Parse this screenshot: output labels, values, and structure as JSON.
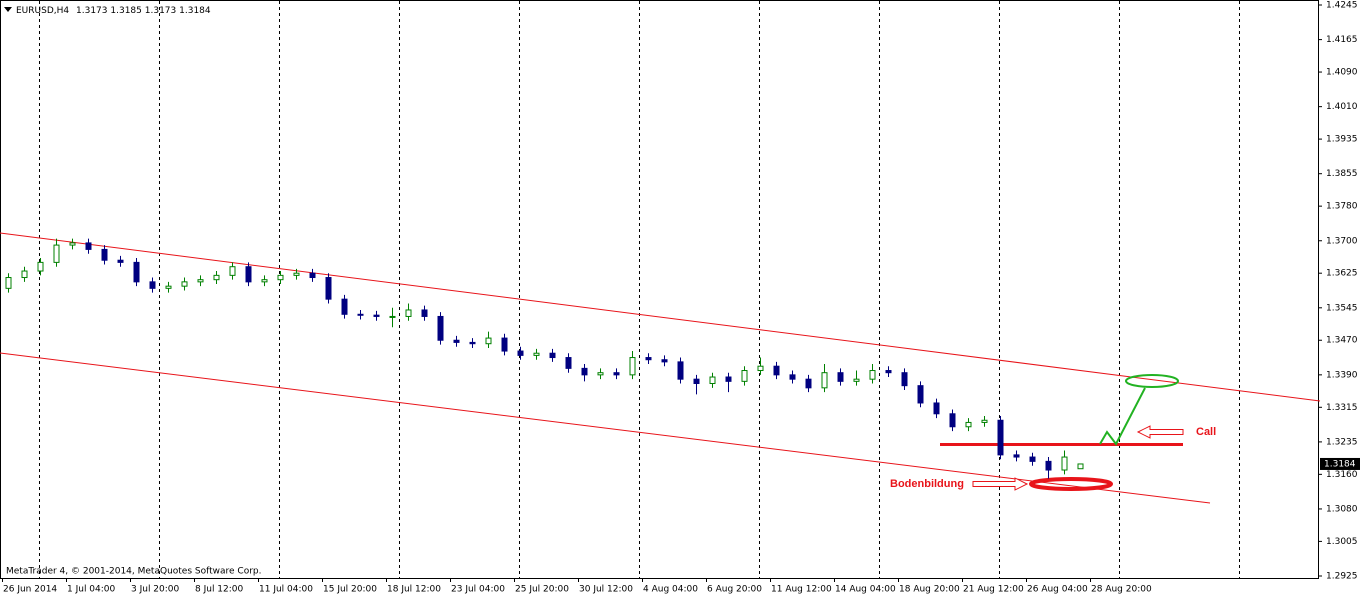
{
  "chart_data": {
    "type": "candlestick",
    "symbol": "EURUSD,H4",
    "footer": "MetaTrader 4, © 2001-2014, MetaQuotes Software Corp.",
    "annotations": [
      "Call",
      "Bodenbildung"
    ],
    "up_color": "#008000",
    "down_color": "#000080",
    "ylim": [
      1.2925,
      1.4245
    ],
    "yticks": [
      {
        "value": 1.4245,
        "label": "1.4245"
      },
      {
        "value": 1.4165,
        "label": "1.4165"
      },
      {
        "value": 1.409,
        "label": "1.4090"
      },
      {
        "value": 1.401,
        "label": "1.4010"
      },
      {
        "value": 1.3935,
        "label": "1.3935"
      },
      {
        "value": 1.3855,
        "label": "1.3855"
      },
      {
        "value": 1.378,
        "label": "1.3780"
      },
      {
        "value": 1.37,
        "label": "1.3700"
      },
      {
        "value": 1.3625,
        "label": "1.3625"
      },
      {
        "value": 1.3545,
        "label": "1.3545"
      },
      {
        "value": 1.347,
        "label": "1.3470"
      },
      {
        "value": 1.339,
        "label": "1.3390"
      },
      {
        "value": 1.3315,
        "label": "1.3315"
      },
      {
        "value": 1.3235,
        "label": "1.3235"
      },
      {
        "value": 1.316,
        "label": "1.3160"
      },
      {
        "value": 1.308,
        "label": "1.3080"
      },
      {
        "value": 1.3005,
        "label": "1.3005"
      },
      {
        "value": 1.2925,
        "label": "1.2925"
      }
    ],
    "x_labels": [
      "26 Jun 2014",
      "1 Jul 04:00",
      "3 Jul 20:00",
      "8 Jul 12:00",
      "11 Jul 04:00",
      "15 Jul 20:00",
      "18 Jul 12:00",
      "23 Jul 04:00",
      "25 Jul 20:00",
      "30 Jul 12:00",
      "4 Aug 04:00",
      "6 Aug 20:00",
      "11 Aug 12:00",
      "14 Aug 04:00",
      "18 Aug 20:00",
      "21 Aug 12:00",
      "26 Aug 04:00",
      "28 Aug 20:00"
    ],
    "ohlc": [
      [
        1.359,
        1.3625,
        1.358,
        1.3615
      ],
      [
        1.3615,
        1.364,
        1.3605,
        1.363
      ],
      [
        1.363,
        1.366,
        1.362,
        1.365
      ],
      [
        1.365,
        1.3705,
        1.364,
        1.369
      ],
      [
        1.369,
        1.3705,
        1.368,
        1.3695
      ],
      [
        1.3695,
        1.3705,
        1.367,
        1.368
      ],
      [
        1.368,
        1.369,
        1.3645,
        1.3655
      ],
      [
        1.3655,
        1.3665,
        1.364,
        1.365
      ],
      [
        1.365,
        1.366,
        1.3595,
        1.3605
      ],
      [
        1.3605,
        1.3615,
        1.358,
        1.359
      ],
      [
        1.359,
        1.3605,
        1.358,
        1.3595
      ],
      [
        1.3595,
        1.3615,
        1.3585,
        1.3605
      ],
      [
        1.3605,
        1.362,
        1.3595,
        1.361
      ],
      [
        1.361,
        1.363,
        1.36,
        1.362
      ],
      [
        1.362,
        1.365,
        1.361,
        1.364
      ],
      [
        1.364,
        1.365,
        1.3595,
        1.3605
      ],
      [
        1.3605,
        1.362,
        1.3595,
        1.361
      ],
      [
        1.361,
        1.363,
        1.36,
        1.362
      ],
      [
        1.362,
        1.3635,
        1.361,
        1.3625
      ],
      [
        1.3625,
        1.3635,
        1.3605,
        1.3615
      ],
      [
        1.3615,
        1.3625,
        1.3555,
        1.3565
      ],
      [
        1.3565,
        1.3575,
        1.352,
        1.353
      ],
      [
        1.353,
        1.354,
        1.3518,
        1.3528
      ],
      [
        1.3528,
        1.3538,
        1.3515,
        1.3525
      ],
      [
        1.3525,
        1.3545,
        1.35,
        1.3525
      ],
      [
        1.3525,
        1.3555,
        1.3515,
        1.354
      ],
      [
        1.354,
        1.355,
        1.3515,
        1.3525
      ],
      [
        1.3525,
        1.3535,
        1.346,
        1.347
      ],
      [
        1.347,
        1.348,
        1.3455,
        1.3465
      ],
      [
        1.3465,
        1.3475,
        1.3452,
        1.3462
      ],
      [
        1.3462,
        1.349,
        1.3452,
        1.3475
      ],
      [
        1.3475,
        1.3485,
        1.3435,
        1.3445
      ],
      [
        1.3445,
        1.3455,
        1.3425,
        1.3435
      ],
      [
        1.3435,
        1.345,
        1.3425,
        1.344
      ],
      [
        1.344,
        1.345,
        1.342,
        1.343
      ],
      [
        1.343,
        1.344,
        1.3395,
        1.3405
      ],
      [
        1.3405,
        1.3415,
        1.3375,
        1.339
      ],
      [
        1.339,
        1.3405,
        1.338,
        1.3395
      ],
      [
        1.3395,
        1.3405,
        1.338,
        1.339
      ],
      [
        1.339,
        1.3445,
        1.338,
        1.343
      ],
      [
        1.343,
        1.344,
        1.3415,
        1.3425
      ],
      [
        1.3425,
        1.3435,
        1.341,
        1.342
      ],
      [
        1.342,
        1.343,
        1.337,
        1.338
      ],
      [
        1.338,
        1.339,
        1.3345,
        1.337
      ],
      [
        1.337,
        1.3395,
        1.336,
        1.3385
      ],
      [
        1.3385,
        1.3395,
        1.335,
        1.3375
      ],
      [
        1.3375,
        1.341,
        1.3365,
        1.34
      ],
      [
        1.34,
        1.343,
        1.339,
        1.341
      ],
      [
        1.341,
        1.342,
        1.338,
        1.339
      ],
      [
        1.339,
        1.34,
        1.337,
        1.338
      ],
      [
        1.338,
        1.339,
        1.335,
        1.336
      ],
      [
        1.336,
        1.3415,
        1.335,
        1.3395
      ],
      [
        1.3395,
        1.3405,
        1.3365,
        1.3375
      ],
      [
        1.3375,
        1.34,
        1.3365,
        1.338
      ],
      [
        1.338,
        1.3415,
        1.337,
        1.34
      ],
      [
        1.34,
        1.341,
        1.3385,
        1.3395
      ],
      [
        1.3395,
        1.3405,
        1.3355,
        1.3365
      ],
      [
        1.3365,
        1.3375,
        1.3315,
        1.3325
      ],
      [
        1.3325,
        1.3335,
        1.329,
        1.33
      ],
      [
        1.33,
        1.331,
        1.326,
        1.327
      ],
      [
        1.327,
        1.329,
        1.326,
        1.328
      ],
      [
        1.328,
        1.3295,
        1.327,
        1.3285
      ],
      [
        1.3285,
        1.3295,
        1.3195,
        1.3205
      ],
      [
        1.3205,
        1.3215,
        1.319,
        1.32
      ],
      [
        1.32,
        1.321,
        1.318,
        1.319
      ],
      [
        1.319,
        1.32,
        1.315,
        1.317
      ],
      [
        1.317,
        1.3215,
        1.316,
        1.32
      ],
      [
        1.3173,
        1.3185,
        1.3173,
        1.3184
      ]
    ]
  }
}
